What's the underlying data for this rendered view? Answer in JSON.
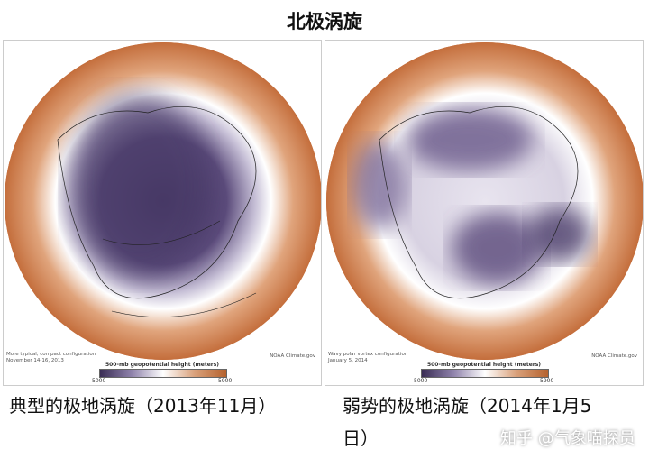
{
  "title": "北极涡旋",
  "panels": [
    {
      "note_line1": "More typical, compact configuration",
      "note_line2": "November 14-16, 2013",
      "credit": "NOAA Climate.gov",
      "colorbar_label": "500-mb geopotential height (meters)",
      "colorbar_min": "5000",
      "colorbar_max": "5900",
      "caption": "典型的极地涡旋（2013年11月）"
    },
    {
      "note_line1": "Wavy polar vortex configuration",
      "note_line2": "January 5, 2014",
      "credit": "NOAA Climate.gov",
      "colorbar_label": "500-mb geopotential height (meters)",
      "colorbar_min": "5000",
      "colorbar_max": "5900",
      "caption": "弱势的极地涡旋（2014年1月5",
      "caption_line2": "日）"
    }
  ],
  "watermark": "知乎 @气象喵探员",
  "colors": {
    "low": "#3a2d55",
    "high": "#b5622e"
  }
}
